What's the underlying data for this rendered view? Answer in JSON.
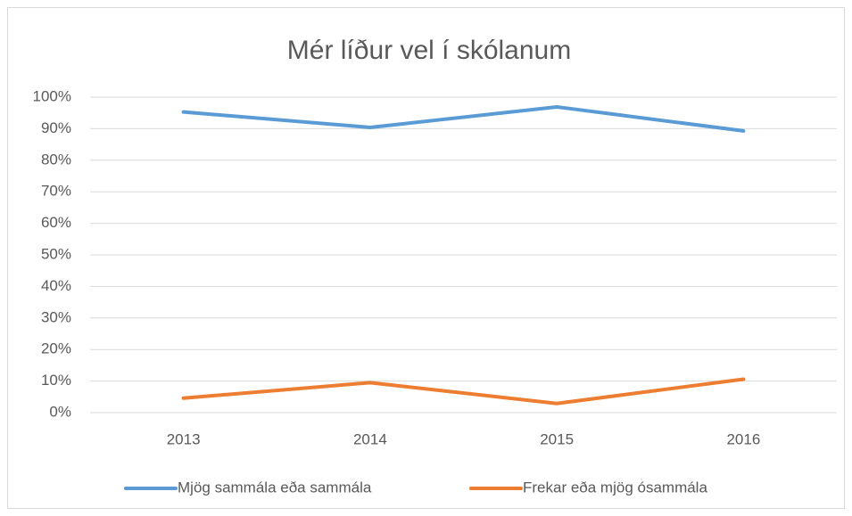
{
  "chart_data": {
    "type": "line",
    "title": "Mér líður vel í skólanum",
    "categories": [
      "2013",
      "2014",
      "2015",
      "2016"
    ],
    "series": [
      {
        "name": "Mjög sammála eða sammála",
        "color": "#5b9bd5",
        "values": [
          95.3,
          90.4,
          96.9,
          89.3
        ]
      },
      {
        "name": "Frekar eða mjög ósammála",
        "color": "#ed7d31",
        "values": [
          4.6,
          9.5,
          2.9,
          10.6
        ]
      }
    ],
    "ylim": [
      0,
      100
    ],
    "yticks": [
      {
        "value": 0,
        "label": "0%"
      },
      {
        "value": 10,
        "label": "10%"
      },
      {
        "value": 20,
        "label": "20%"
      },
      {
        "value": 30,
        "label": "30%"
      },
      {
        "value": 40,
        "label": "40%"
      },
      {
        "value": 50,
        "label": "50%"
      },
      {
        "value": 60,
        "label": "60%"
      },
      {
        "value": 70,
        "label": "70%"
      },
      {
        "value": 80,
        "label": "80%"
      },
      {
        "value": 90,
        "label": "90%"
      },
      {
        "value": 100,
        "label": "100%"
      }
    ],
    "grid": true,
    "legend": "bottom"
  }
}
